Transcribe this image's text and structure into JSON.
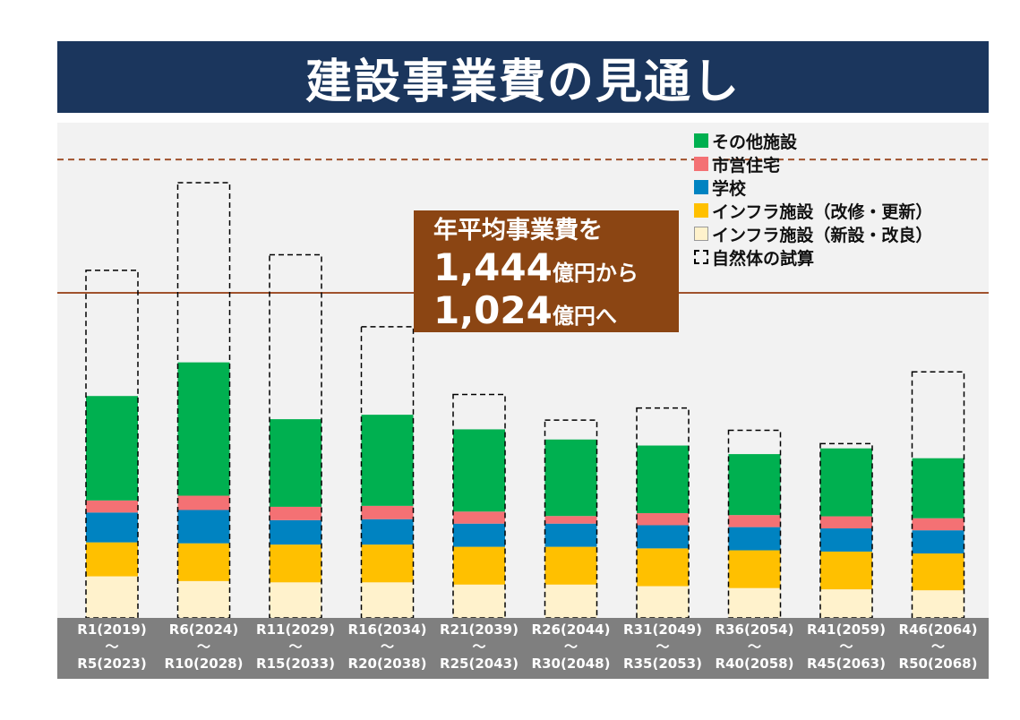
{
  "title": "建設事業費の見通し",
  "legend": [
    {
      "label": "その他施設",
      "color": "#00b050",
      "dashed": false
    },
    {
      "label": "市営住宅",
      "color": "#f47174",
      "dashed": false
    },
    {
      "label": "学校",
      "color": "#0083c1",
      "dashed": false
    },
    {
      "label": "インフラ施設（改修・更新）",
      "color": "#ffc000",
      "dashed": false
    },
    {
      "label": "インフラ施設（新設・改良）",
      "color": "#fff2cc",
      "dashed": false
    },
    {
      "label": "自然体の試算",
      "color": "#000000",
      "dashed": true
    }
  ],
  "callout": {
    "line1": "年平均事業費を",
    "value1": "1,444",
    "unit1": "億円から",
    "value2": "1,024",
    "unit2": "億円へ"
  },
  "chart_data": {
    "type": "bar",
    "stacked": true,
    "categories": [
      [
        "R1(2019)",
        "〜",
        "R5(2023)"
      ],
      [
        "R6(2024)",
        "〜",
        "R10(2028)"
      ],
      [
        "R11(2029)",
        "〜",
        "R15(2033)"
      ],
      [
        "R16(2034)",
        "〜",
        "R20(2038)"
      ],
      [
        "R21(2039)",
        "〜",
        "R25(2043)"
      ],
      [
        "R26(2044)",
        "〜",
        "R30(2048)"
      ],
      [
        "R31(2049)",
        "〜",
        "R35(2053)"
      ],
      [
        "R36(2054)",
        "〜",
        "R40(2058)"
      ],
      [
        "R41(2059)",
        "〜",
        "R45(2063)"
      ],
      [
        "R46(2064)",
        "〜",
        "R50(2068)"
      ]
    ],
    "unit": "億円",
    "series": [
      {
        "name": "インフラ施設（新設・改良）",
        "color": "#fff2cc",
        "values": [
          131,
          116,
          112,
          112,
          105,
          105,
          100,
          94,
          90,
          87
        ]
      },
      {
        "name": "インフラ施設（改修・更新）",
        "color": "#ffc000",
        "values": [
          107,
          119,
          119,
          119,
          119,
          119,
          119,
          119,
          119,
          116
        ]
      },
      {
        "name": "学校",
        "color": "#0083c1",
        "values": [
          94,
          105,
          77,
          80,
          73,
          73,
          73,
          73,
          73,
          73
        ]
      },
      {
        "name": "市営住宅",
        "color": "#f47174",
        "values": [
          38,
          45,
          42,
          42,
          38,
          24,
          38,
          38,
          38,
          38
        ]
      },
      {
        "name": "その他施設",
        "color": "#00b050",
        "values": [
          329,
          420,
          276,
          287,
          259,
          241,
          213,
          192,
          214,
          189
        ]
      }
    ],
    "natural_estimate": {
      "name": "自然体の試算",
      "values": [
        1095,
        1371,
        1144,
        917,
        704,
        623,
        661,
        591,
        549,
        775
      ]
    },
    "reference_lines": [
      {
        "value": 1444,
        "style": "dashed",
        "color": "#a0522d"
      },
      {
        "value": 1024,
        "style": "solid",
        "color": "#a0522d"
      }
    ],
    "ylim": [
      0,
      1560
    ]
  }
}
